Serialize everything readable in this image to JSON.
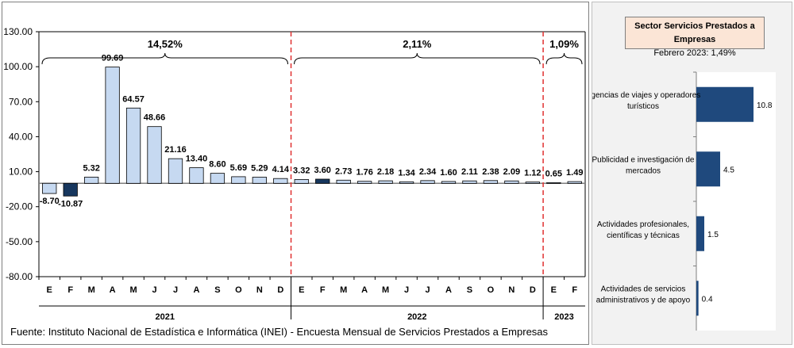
{
  "source": "Fuente: Instituto Nacional de Estadística e Informática (INEI) - Encuesta Mensual de Servicios Prestados a Empresas",
  "side_title": "Sector Servicios Prestados a  Empresas",
  "side_subtitle": "Febrero 2023: 1,49%",
  "colors": {
    "bar_light": "#c6d9f1",
    "bar_dark": "#17375e",
    "bar_border": "#000000",
    "divider": "#e03030",
    "side_bar": "#1f497d"
  },
  "chart_data": [
    {
      "type": "bar",
      "categories": [
        "E",
        "F",
        "M",
        "A",
        "M",
        "J",
        "J",
        "A",
        "S",
        "O",
        "N",
        "D",
        "E",
        "F",
        "M",
        "A",
        "M",
        "J",
        "J",
        "A",
        "S",
        "O",
        "N",
        "D",
        "E",
        "F"
      ],
      "values": [
        -8.7,
        -10.87,
        5.32,
        99.69,
        64.57,
        48.66,
        21.16,
        13.4,
        8.6,
        5.69,
        5.29,
        4.14,
        3.32,
        3.6,
        2.73,
        1.76,
        2.18,
        1.34,
        2.34,
        1.6,
        2.11,
        2.38,
        2.09,
        1.12,
        0.65,
        1.49
      ],
      "value_labels": [
        "-8.70",
        "-10.87",
        "5.32",
        "99.69",
        "64.57",
        "48.66",
        "21.16",
        "13.40",
        "8.60",
        "5.69",
        "5.29",
        "4.14",
        "3.32",
        "3.60",
        "2.73",
        "1.76",
        "2.18",
        "1.34",
        "2.34",
        "1.60",
        "2.11",
        "2.38",
        "2.09",
        "1.12",
        "0.65",
        "1.49"
      ],
      "highlight": [
        1,
        13
      ],
      "years": [
        {
          "label": "2021",
          "start": 0,
          "end": 11,
          "growth": "14,52%"
        },
        {
          "label": "2022",
          "start": 12,
          "end": 23,
          "growth": "2,11%"
        },
        {
          "label": "2023",
          "start": 24,
          "end": 25,
          "growth": "1,09%"
        }
      ],
      "ylim": [
        -80,
        130
      ],
      "yticks": [
        130,
        100,
        70,
        40,
        10,
        -20,
        -50,
        -80
      ],
      "ytick_labels": [
        "130.00",
        "100.00",
        "70.00",
        "40.00",
        "10.00",
        "-20.00",
        "-50.00",
        "-80.00"
      ],
      "grid": false
    },
    {
      "type": "bar",
      "orientation": "horizontal",
      "categories": [
        [
          "Agencias de viajes y operadores",
          "turísticos"
        ],
        [
          "Publicidad e investigación de",
          "mercados"
        ],
        [
          "Actividades profesionales,",
          "científicas y técnicas"
        ],
        [
          "Actividades de servicios",
          "administrativos y de apoyo"
        ]
      ],
      "values": [
        10.8,
        4.5,
        1.5,
        0.4
      ],
      "value_labels": [
        "10.8",
        "4.5",
        "1.5",
        "0.4"
      ]
    }
  ]
}
